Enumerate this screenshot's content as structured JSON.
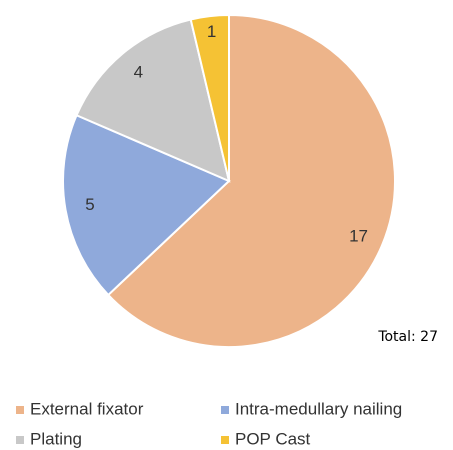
{
  "chart_data": {
    "type": "pie",
    "categories": [
      "External fixator",
      "Intra-medullary nailing",
      "Plating",
      "POP Cast"
    ],
    "values": [
      17,
      5,
      4,
      1
    ],
    "colors": [
      "#edb48a",
      "#8fa9db",
      "#c8c8c8",
      "#f5c234"
    ],
    "annotation": "Total: 27",
    "legend": "bottom"
  }
}
